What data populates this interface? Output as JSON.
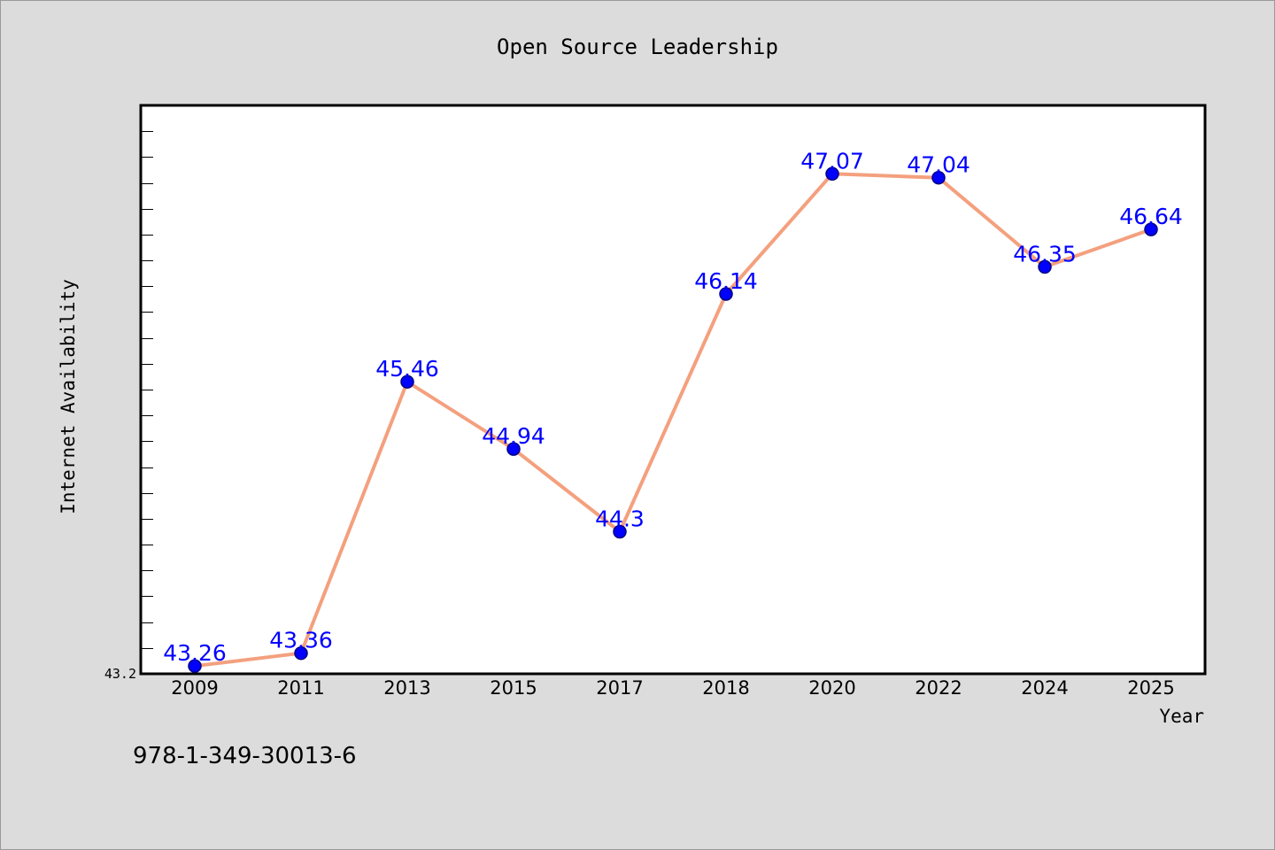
{
  "chart_data": {
    "type": "line",
    "title": "Open Source Leadership",
    "xlabel": "Year",
    "ylabel": "Internet Availability",
    "categories": [
      "2009",
      "2011",
      "2013",
      "2015",
      "2017",
      "2018",
      "2020",
      "2022",
      "2024",
      "2025"
    ],
    "series": [
      {
        "values": [
          43.26,
          43.36,
          45.46,
          44.94,
          44.3,
          46.14,
          47.07,
          47.04,
          46.35,
          46.64
        ],
        "data_labels": [
          "43.26",
          "43.36",
          "45.46",
          "44.94",
          "44.3",
          "46.14",
          "47.07",
          "47.04",
          "46.35",
          "46.64"
        ]
      }
    ],
    "ylim": [
      43.2,
      47.6
    ],
    "y_tick_label": "43.2",
    "grid": false,
    "colors": {
      "line": "#f4a07e",
      "marker": "#0000ff",
      "marker_edge": "#000080",
      "data_label": "#0000ff",
      "background": "#dcdcdc",
      "plot_background": "#ffffff"
    }
  },
  "footer_text": "978-1-349-30013-6"
}
